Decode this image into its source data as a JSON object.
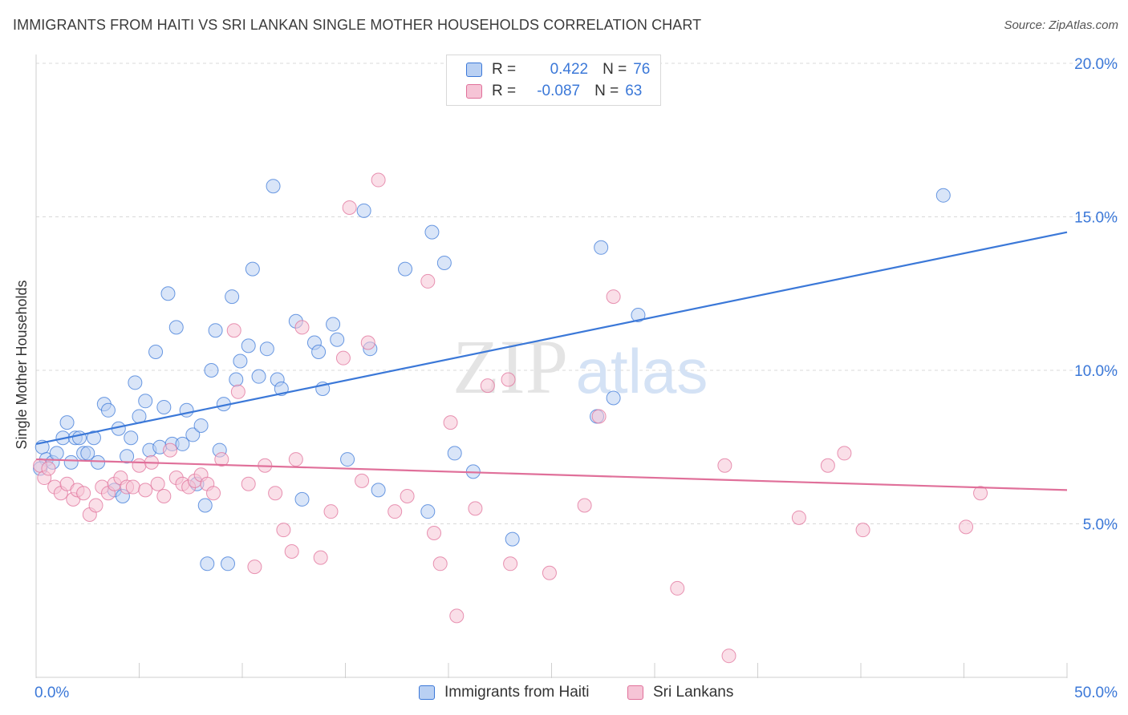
{
  "title": "IMMIGRANTS FROM HAITI VS SRI LANKAN SINGLE MOTHER HOUSEHOLDS CORRELATION CHART",
  "source": "Source: ZipAtlas.com",
  "watermark": {
    "zip": "ZIP",
    "atlas": "atlas"
  },
  "colors": {
    "haiti": "#3b78d8",
    "haiti_fill": "#b9d0f3",
    "srilanka": "#e0709a",
    "srilanka_fill": "#f6c4d6",
    "value_text": "#3b78d8"
  },
  "legend": {
    "rows": [
      {
        "r_label": "R =",
        "r_value": "0.422",
        "n_label": "N =",
        "n_value": "76"
      },
      {
        "r_label": "R =",
        "r_value": "-0.087",
        "n_label": "N =",
        "n_value": "63"
      }
    ]
  },
  "bottom_legend": {
    "haiti": "Immigrants from Haiti",
    "srilanka": "Sri Lankans"
  },
  "chart_data": {
    "type": "scatter",
    "ylabel": "Single Mother Households",
    "xlim": [
      0,
      50
    ],
    "ylim": [
      0,
      20
    ],
    "x_tick_labels": [
      "0.0%",
      "50.0%"
    ],
    "y_ticks": [
      5,
      10,
      15,
      20
    ],
    "y_tick_labels": [
      "5.0%",
      "10.0%",
      "15.0%",
      "20.0%"
    ],
    "grid": true,
    "series": [
      {
        "name": "Immigrants from Haiti",
        "trend": {
          "x": [
            0,
            50
          ],
          "y": [
            7.6,
            14.5
          ]
        },
        "points": [
          [
            0.3,
            7.5
          ],
          [
            0.5,
            7.1
          ],
          [
            0.8,
            7.0
          ],
          [
            1.0,
            7.3
          ],
          [
            1.3,
            7.8
          ],
          [
            1.5,
            8.3
          ],
          [
            1.7,
            7.0
          ],
          [
            1.9,
            7.8
          ],
          [
            2.1,
            7.8
          ],
          [
            2.3,
            7.3
          ],
          [
            2.5,
            7.3
          ],
          [
            2.8,
            7.8
          ],
          [
            3.0,
            7.0
          ],
          [
            3.3,
            8.9
          ],
          [
            3.5,
            8.7
          ],
          [
            3.8,
            6.1
          ],
          [
            4.0,
            8.1
          ],
          [
            4.2,
            5.9
          ],
          [
            4.4,
            7.2
          ],
          [
            4.6,
            7.8
          ],
          [
            4.8,
            9.6
          ],
          [
            5.0,
            8.5
          ],
          [
            5.3,
            9.0
          ],
          [
            5.5,
            7.4
          ],
          [
            5.8,
            10.6
          ],
          [
            6.0,
            7.5
          ],
          [
            6.2,
            8.8
          ],
          [
            6.4,
            12.5
          ],
          [
            6.6,
            7.6
          ],
          [
            6.8,
            11.4
          ],
          [
            7.1,
            7.6
          ],
          [
            7.3,
            8.7
          ],
          [
            7.6,
            7.9
          ],
          [
            7.8,
            6.3
          ],
          [
            8.0,
            8.2
          ],
          [
            8.2,
            5.6
          ],
          [
            8.3,
            3.7
          ],
          [
            8.5,
            10.0
          ],
          [
            8.7,
            11.3
          ],
          [
            8.9,
            7.4
          ],
          [
            9.1,
            8.9
          ],
          [
            9.3,
            3.7
          ],
          [
            9.5,
            12.4
          ],
          [
            9.7,
            9.7
          ],
          [
            9.9,
            10.3
          ],
          [
            10.3,
            10.8
          ],
          [
            10.5,
            13.3
          ],
          [
            10.8,
            9.8
          ],
          [
            11.2,
            10.7
          ],
          [
            11.5,
            16.0
          ],
          [
            11.7,
            9.7
          ],
          [
            11.9,
            9.4
          ],
          [
            12.6,
            11.6
          ],
          [
            12.9,
            5.8
          ],
          [
            13.5,
            10.9
          ],
          [
            13.7,
            10.6
          ],
          [
            13.9,
            9.4
          ],
          [
            14.4,
            11.5
          ],
          [
            14.6,
            11.0
          ],
          [
            15.1,
            7.1
          ],
          [
            15.9,
            15.2
          ],
          [
            16.2,
            10.7
          ],
          [
            16.6,
            6.1
          ],
          [
            17.9,
            13.3
          ],
          [
            19.0,
            5.4
          ],
          [
            19.2,
            14.5
          ],
          [
            19.8,
            13.5
          ],
          [
            20.3,
            7.3
          ],
          [
            21.2,
            6.7
          ],
          [
            23.1,
            4.5
          ],
          [
            27.2,
            8.5
          ],
          [
            27.4,
            14.0
          ],
          [
            28.0,
            9.1
          ],
          [
            29.2,
            11.8
          ],
          [
            44.0,
            15.7
          ],
          [
            0.2,
            6.8
          ]
        ]
      },
      {
        "name": "Sri Lankans",
        "trend": {
          "x": [
            0,
            50
          ],
          "y": [
            7.1,
            6.1
          ]
        },
        "points": [
          [
            0.2,
            6.9
          ],
          [
            0.4,
            6.5
          ],
          [
            0.6,
            6.8
          ],
          [
            0.9,
            6.2
          ],
          [
            1.2,
            6.0
          ],
          [
            1.5,
            6.3
          ],
          [
            1.8,
            5.8
          ],
          [
            2.0,
            6.1
          ],
          [
            2.3,
            6.0
          ],
          [
            2.6,
            5.3
          ],
          [
            2.9,
            5.6
          ],
          [
            3.2,
            6.2
          ],
          [
            3.5,
            6.0
          ],
          [
            3.8,
            6.3
          ],
          [
            4.1,
            6.5
          ],
          [
            4.4,
            6.2
          ],
          [
            4.7,
            6.2
          ],
          [
            5.0,
            6.9
          ],
          [
            5.3,
            6.1
          ],
          [
            5.6,
            7.0
          ],
          [
            5.9,
            6.3
          ],
          [
            6.2,
            5.9
          ],
          [
            6.5,
            7.4
          ],
          [
            6.8,
            6.5
          ],
          [
            7.1,
            6.3
          ],
          [
            7.4,
            6.2
          ],
          [
            7.7,
            6.4
          ],
          [
            8.0,
            6.6
          ],
          [
            8.3,
            6.3
          ],
          [
            8.6,
            6.0
          ],
          [
            9.0,
            7.1
          ],
          [
            9.6,
            11.3
          ],
          [
            9.8,
            9.3
          ],
          [
            10.3,
            6.3
          ],
          [
            10.6,
            3.6
          ],
          [
            11.1,
            6.9
          ],
          [
            11.6,
            6.0
          ],
          [
            12.0,
            4.8
          ],
          [
            12.4,
            4.1
          ],
          [
            12.6,
            7.1
          ],
          [
            12.9,
            11.4
          ],
          [
            13.8,
            3.9
          ],
          [
            14.3,
            5.4
          ],
          [
            14.9,
            10.4
          ],
          [
            15.2,
            15.3
          ],
          [
            15.8,
            6.4
          ],
          [
            16.1,
            10.9
          ],
          [
            16.6,
            16.2
          ],
          [
            17.4,
            5.4
          ],
          [
            18.0,
            5.9
          ],
          [
            19.0,
            12.9
          ],
          [
            19.3,
            4.7
          ],
          [
            19.6,
            3.7
          ],
          [
            20.1,
            8.3
          ],
          [
            20.4,
            2.0
          ],
          [
            21.3,
            5.5
          ],
          [
            21.9,
            9.5
          ],
          [
            22.9,
            9.7
          ],
          [
            23.0,
            3.7
          ],
          [
            24.9,
            3.4
          ],
          [
            26.6,
            5.6
          ],
          [
            27.3,
            8.5
          ],
          [
            28.0,
            12.4
          ]
        ],
        "extra_points": [
          [
            31.1,
            2.9
          ],
          [
            33.4,
            6.9
          ],
          [
            33.6,
            0.7
          ],
          [
            37.0,
            5.2
          ],
          [
            38.4,
            6.9
          ],
          [
            39.2,
            7.3
          ],
          [
            40.1,
            4.8
          ],
          [
            45.1,
            4.9
          ],
          [
            45.8,
            6.0
          ]
        ]
      }
    ]
  }
}
